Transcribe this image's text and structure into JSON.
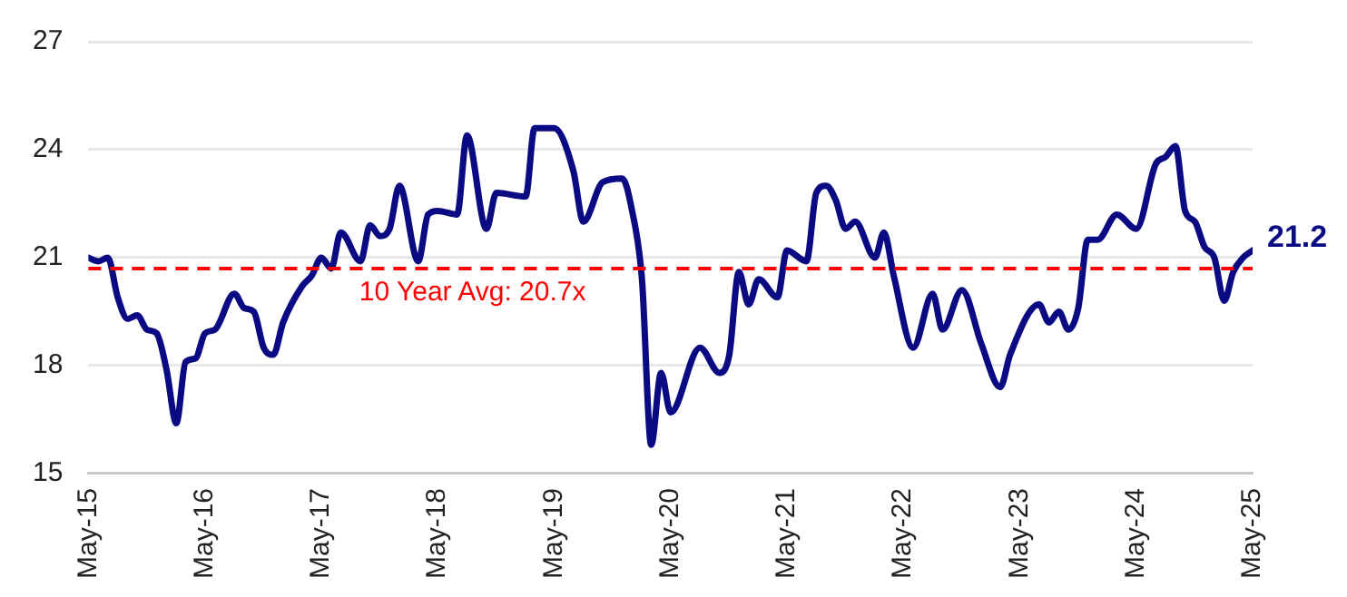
{
  "chart_data": {
    "type": "line",
    "marker": "none",
    "line_style": "solid",
    "grid": "y",
    "xlim": [
      "2015-05",
      "2025-05"
    ],
    "xticks": [
      {
        "value": "2015-05",
        "label": "May-15"
      },
      {
        "value": "2016-05",
        "label": "May-16"
      },
      {
        "value": "2017-05",
        "label": "May-17"
      },
      {
        "value": "2018-05",
        "label": "May-18"
      },
      {
        "value": "2019-05",
        "label": "May-19"
      },
      {
        "value": "2020-05",
        "label": "May-20"
      },
      {
        "value": "2021-05",
        "label": "May-21"
      },
      {
        "value": "2022-05",
        "label": "May-22"
      },
      {
        "value": "2023-05",
        "label": "May-23"
      },
      {
        "value": "2024-05",
        "label": "May-24"
      },
      {
        "value": "2025-05",
        "label": "May-25"
      }
    ],
    "ylim": [
      15,
      27
    ],
    "yticks": [
      15,
      18,
      21,
      24,
      27
    ],
    "series": [
      {
        "color": "#0a0a82",
        "x": [
          "2015-05",
          "2015-06",
          "2015-07",
          "2015-08",
          "2015-09",
          "2015-10",
          "2015-11",
          "2015-12",
          "2016-01",
          "2016-02",
          "2016-03",
          "2016-04",
          "2016-05",
          "2016-06",
          "2016-08",
          "2016-09",
          "2016-10",
          "2016-11",
          "2016-12",
          "2017-01",
          "2017-03",
          "2017-04",
          "2017-05",
          "2017-06",
          "2017-07",
          "2017-09",
          "2017-10",
          "2017-11",
          "2017-12",
          "2018-01",
          "2018-03",
          "2018-04",
          "2018-05",
          "2018-07",
          "2018-08",
          "2018-10",
          "2018-11",
          "2019-02",
          "2019-03",
          "2019-05",
          "2019-07",
          "2019-08",
          "2019-10",
          "2019-12",
          "2020-01",
          "2020-02",
          "2020-03",
          "2020-04",
          "2020-05",
          "2020-08",
          "2020-10",
          "2020-11",
          "2020-12",
          "2021-01",
          "2021-02",
          "2021-04",
          "2021-05",
          "2021-07",
          "2021-08",
          "2021-09",
          "2021-10",
          "2021-11",
          "2021-12",
          "2022-02",
          "2022-03",
          "2022-04",
          "2022-06",
          "2022-08",
          "2022-09",
          "2022-11",
          "2023-01",
          "2023-03",
          "2023-04",
          "2023-07",
          "2023-08",
          "2023-09",
          "2023-10",
          "2023-11",
          "2023-12",
          "2024-01",
          "2024-03",
          "2024-05",
          "2024-07",
          "2024-08",
          "2024-09",
          "2024-10",
          "2024-11",
          "2024-12",
          "2025-01",
          "2025-02",
          "2025-03",
          "2025-04",
          "2025-05"
        ],
        "values": [
          21.0,
          20.9,
          21.0,
          19.9,
          19.3,
          19.4,
          19.0,
          18.9,
          17.9,
          16.4,
          18.1,
          18.2,
          18.9,
          19.0,
          20.0,
          19.6,
          19.5,
          18.5,
          18.3,
          19.2,
          20.2,
          20.5,
          21.0,
          20.7,
          21.7,
          20.9,
          21.9,
          21.6,
          21.8,
          23.0,
          20.9,
          22.2,
          22.3,
          22.2,
          24.4,
          21.8,
          22.8,
          22.7,
          24.6,
          24.6,
          23.4,
          22.0,
          23.1,
          23.2,
          22.3,
          20.4,
          15.8,
          17.8,
          16.7,
          18.5,
          17.8,
          18.3,
          20.6,
          19.7,
          20.4,
          19.9,
          21.2,
          20.9,
          22.8,
          23.0,
          22.6,
          21.8,
          22.0,
          21.0,
          21.7,
          20.5,
          18.5,
          20.0,
          19.0,
          20.1,
          18.6,
          17.4,
          18.3,
          19.7,
          19.2,
          19.5,
          19.0,
          19.6,
          21.5,
          21.5,
          22.2,
          21.8,
          23.6,
          23.8,
          24.1,
          22.3,
          22.0,
          21.3,
          21.0,
          19.8,
          20.6,
          21.0,
          21.2
        ]
      }
    ],
    "ref_lines": [
      {
        "axis": "y",
        "value": 20.7,
        "label": "10 Year Avg: 20.7x",
        "color": "#ff0000",
        "line_style": "dashed"
      }
    ],
    "annotations": [
      {
        "text": "21.2",
        "x": "2025-05",
        "y": 21.2
      }
    ]
  }
}
